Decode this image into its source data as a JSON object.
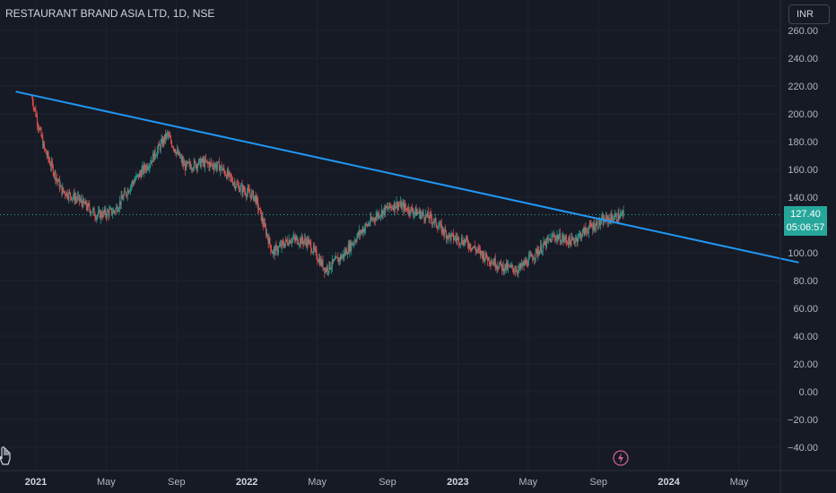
{
  "header": {
    "title": "RESTAURANT BRAND ASIA LTD, 1D, NSE",
    "currency": "INR"
  },
  "price_label": {
    "price": "127.40",
    "countdown": "05:06:57"
  },
  "icons": [
    "hand-icon",
    "lightning-icon"
  ],
  "colors": {
    "background": "#161a25",
    "up": "#26a69a",
    "down": "#ef5350",
    "trendline": "#2196f3"
  },
  "chart_data": {
    "type": "candlestick",
    "title": "RESTAURANT BRAND ASIA LTD, 1D, NSE",
    "y_ticks": [
      "260.00",
      "240.00",
      "220.00",
      "200.00",
      "180.00",
      "160.00",
      "140.00",
      "120.00",
      "100.00",
      "80.00",
      "60.00",
      "40.00",
      "20.00",
      "0.00",
      "−20.00",
      "−40.00"
    ],
    "x_ticks": [
      {
        "label": "2021",
        "bold": true
      },
      {
        "label": "May",
        "bold": false
      },
      {
        "label": "Sep",
        "bold": false
      },
      {
        "label": "2022",
        "bold": true
      },
      {
        "label": "May",
        "bold": false
      },
      {
        "label": "Sep",
        "bold": false
      },
      {
        "label": "2023",
        "bold": true
      },
      {
        "label": "May",
        "bold": false
      },
      {
        "label": "Sep",
        "bold": false
      },
      {
        "label": "2024",
        "bold": true
      },
      {
        "label": "May",
        "bold": false
      }
    ],
    "ylim": [
      -46,
      266
    ],
    "last_price": 127.4,
    "trendline": [
      {
        "x": "2020-12",
        "y": 216
      },
      {
        "x": "2024-07",
        "y": 93
      }
    ],
    "close_path": [
      {
        "x": "2020-12-24",
        "y": 212
      },
      {
        "x": "2021-01",
        "y": 175
      },
      {
        "x": "2021-02",
        "y": 145
      },
      {
        "x": "2021-03",
        "y": 138
      },
      {
        "x": "2021-04",
        "y": 127
      },
      {
        "x": "2021-05",
        "y": 130
      },
      {
        "x": "2021-06",
        "y": 150
      },
      {
        "x": "2021-07",
        "y": 165
      },
      {
        "x": "2021-08",
        "y": 185
      },
      {
        "x": "2021-09",
        "y": 162
      },
      {
        "x": "2021-10",
        "y": 165
      },
      {
        "x": "2021-11",
        "y": 162
      },
      {
        "x": "2021-12",
        "y": 148
      },
      {
        "x": "2022-01",
        "y": 140
      },
      {
        "x": "2022-02",
        "y": 100
      },
      {
        "x": "2022-03",
        "y": 110
      },
      {
        "x": "2022-04",
        "y": 108
      },
      {
        "x": "2022-05",
        "y": 88
      },
      {
        "x": "2022-06",
        "y": 98
      },
      {
        "x": "2022-07",
        "y": 115
      },
      {
        "x": "2022-08",
        "y": 128
      },
      {
        "x": "2022-09",
        "y": 135
      },
      {
        "x": "2022-10",
        "y": 130
      },
      {
        "x": "2022-11",
        "y": 125
      },
      {
        "x": "2022-12",
        "y": 112
      },
      {
        "x": "2023-01",
        "y": 108
      },
      {
        "x": "2023-02",
        "y": 98
      },
      {
        "x": "2023-03",
        "y": 90
      },
      {
        "x": "2023-04",
        "y": 88
      },
      {
        "x": "2023-05",
        "y": 100
      },
      {
        "x": "2023-06",
        "y": 112
      },
      {
        "x": "2023-07",
        "y": 108
      },
      {
        "x": "2023-08",
        "y": 118
      },
      {
        "x": "2023-09",
        "y": 124
      },
      {
        "x": "2023-10",
        "y": 127.4
      }
    ]
  }
}
